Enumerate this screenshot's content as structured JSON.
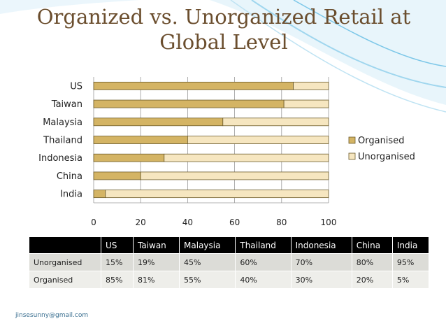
{
  "slide": {
    "title_lines": [
      "Organized vs. Unorganized Retail at",
      "Global Level"
    ],
    "footer_email": "jinsesunny@gmail.com"
  },
  "colors": {
    "organised": "#d4b464",
    "unorganised": "#f6e6c0",
    "bar_stroke": "#6b5a2a",
    "title": "#6b4e2e",
    "wave": "#7cc7e8"
  },
  "chart_data": {
    "type": "bar",
    "orientation": "horizontal",
    "stacked": true,
    "categories": [
      "US",
      "Taiwan",
      "Malaysia",
      "Thailand",
      "Indonesia",
      "China",
      "India"
    ],
    "series": [
      {
        "name": "Organised",
        "values": [
          85,
          81,
          55,
          40,
          30,
          20,
          5
        ]
      },
      {
        "name": "Unorganised",
        "values": [
          15,
          19,
          45,
          60,
          70,
          80,
          95
        ]
      }
    ],
    "xlim": [
      0,
      100
    ],
    "xticks": [
      0,
      20,
      40,
      60,
      80,
      100
    ],
    "grid": true,
    "legend": "right"
  },
  "table": {
    "header": [
      "",
      "US",
      "Taiwan",
      "Malaysia",
      "Thailand",
      "Indonesia",
      "China",
      "India"
    ],
    "rows": [
      [
        "Unorganised",
        "15%",
        "19%",
        "45%",
        "60%",
        "70%",
        "80%",
        "95%"
      ],
      [
        "Organised",
        "85%",
        "81%",
        "55%",
        "40%",
        "30%",
        "20%",
        "5%"
      ]
    ]
  }
}
